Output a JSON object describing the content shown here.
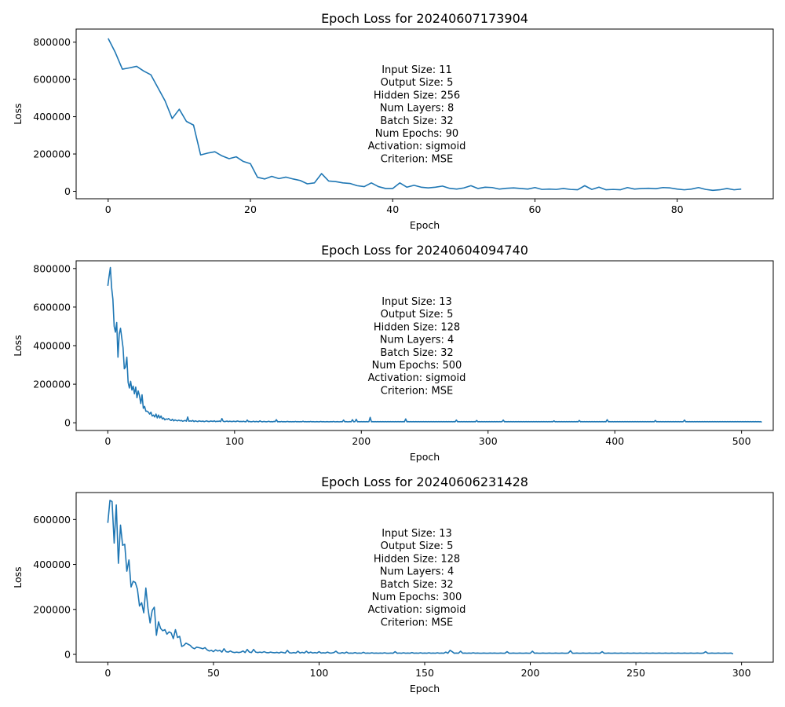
{
  "chart_data": [
    {
      "type": "line",
      "title": "Epoch Loss for 20240607173904",
      "xlabel": "Epoch",
      "ylabel": "Loss",
      "xlim": [
        -4.5,
        93.5
      ],
      "ylim": [
        -40000,
        870000
      ],
      "xticks": [
        0,
        20,
        40,
        60,
        80
      ],
      "yticks": [
        0,
        200000,
        400000,
        600000,
        800000
      ],
      "grid": false,
      "annotation": [
        "Input Size: 11",
        "Output Size: 5",
        "Hidden Size: 256",
        "Num Layers: 8",
        "Batch Size: 32",
        "Num Epochs: 90",
        "Activation: sigmoid",
        "Criterion: MSE"
      ],
      "series": [
        {
          "color": "#1f77b4",
          "x_start": 0,
          "values": [
            820000,
            745000,
            655000,
            662000,
            670000,
            645000,
            625000,
            555000,
            485000,
            390000,
            440000,
            375000,
            355000,
            195000,
            205000,
            212000,
            190000,
            175000,
            185000,
            160000,
            148000,
            75000,
            66000,
            80000,
            68000,
            76000,
            66000,
            58000,
            40000,
            45000,
            95000,
            55000,
            52000,
            45000,
            42000,
            30000,
            25000,
            45000,
            25000,
            15000,
            15000,
            45000,
            22000,
            32000,
            22000,
            18000,
            22000,
            28000,
            16000,
            12000,
            18000,
            30000,
            15000,
            22000,
            20000,
            12000,
            16000,
            18000,
            15000,
            12000,
            20000,
            10000,
            12000,
            10000,
            15000,
            10000,
            8000,
            30000,
            10000,
            22000,
            8000,
            10000,
            8000,
            20000,
            12000,
            15000,
            16000,
            14000,
            20000,
            18000,
            12000,
            8000,
            12000,
            20000,
            10000,
            5000,
            8000,
            15000,
            8000,
            12000
          ]
        }
      ]
    },
    {
      "type": "line",
      "title": "Epoch Loss for 20240604094740",
      "xlabel": "Epoch",
      "ylabel": "Loss",
      "xlim": [
        -25,
        525
      ],
      "ylim": [
        -40000,
        840000
      ],
      "xticks": [
        0,
        100,
        200,
        300,
        400,
        500
      ],
      "yticks": [
        0,
        200000,
        400000,
        600000,
        800000
      ],
      "grid": false,
      "annotation": [
        "Input Size: 13",
        "Output Size: 5",
        "Hidden Size: 128",
        "Num Layers: 4",
        "Batch Size: 32",
        "Num Epochs: 500",
        "Activation: sigmoid",
        "Criterion: MSE"
      ],
      "series": [
        {
          "color": "#1f77b4",
          "x_start": 0,
          "values": [
            710000,
            760000,
            805000,
            700000,
            640000,
            500000,
            470000,
            520000,
            340000,
            460000,
            490000,
            440000,
            390000,
            280000,
            290000,
            340000,
            210000,
            180000,
            215000,
            170000,
            190000,
            150000,
            185000,
            130000,
            165000,
            140000,
            100000,
            145000,
            75000,
            85000,
            60000,
            60000,
            55000,
            45000,
            55000,
            35000,
            40000,
            30000,
            45000,
            25000,
            40000,
            25000,
            35000,
            20000,
            25000,
            15000,
            20000,
            18000,
            22000,
            15000,
            12000,
            18000,
            10000,
            15000,
            12000,
            10000,
            14000,
            10000,
            12000,
            8000,
            10000,
            12000,
            8000,
            30000,
            8000,
            10000,
            8000,
            12000,
            6000,
            10000,
            8000,
            6000,
            10000,
            8000,
            7000,
            9000,
            6000,
            8000,
            10000,
            7000,
            6000,
            9000,
            8000,
            7000,
            10000,
            6000,
            8000,
            7000,
            9000,
            6000,
            22000,
            8000,
            6000,
            7000,
            9000,
            6000,
            8000,
            7000,
            6000,
            8000,
            7000,
            6000,
            9000,
            8000,
            6000,
            7000,
            6000,
            8000,
            6000,
            5000,
            14000,
            6000,
            7000,
            5000,
            6000,
            8000,
            5000,
            7000,
            6000,
            5000,
            10000,
            6000,
            5000,
            7000,
            6000,
            5000,
            6000,
            8000,
            5000,
            6000,
            5000,
            7000,
            6000,
            16000,
            5000,
            6000,
            5000,
            7000,
            5000,
            6000,
            5000,
            6000,
            7000,
            5000,
            6000,
            5000,
            6000,
            5000,
            7000,
            5000,
            6000,
            5000,
            6000,
            5000,
            8000,
            5000,
            6000,
            5000,
            6000,
            5000,
            7000,
            5000,
            6000,
            5000,
            5000,
            6000,
            5000,
            5000,
            7000,
            5000,
            6000,
            5000,
            5000,
            6000,
            5000,
            5000,
            6000,
            5000,
            7000,
            5000,
            5000,
            6000,
            5000,
            5000,
            6000,
            5000,
            14000,
            5000,
            6000,
            5000,
            5000,
            6000,
            5000,
            16000,
            5000,
            6000,
            18000,
            5000,
            6000,
            5000,
            6000,
            5000,
            6000,
            5000,
            6000,
            5000,
            6000,
            28000,
            5000,
            6000,
            5000,
            6000,
            5000,
            6000,
            5000,
            6000,
            5000,
            6000,
            5000,
            6000,
            5000,
            6000,
            5000,
            6000,
            5000,
            6000,
            5000,
            6000,
            5000,
            6000,
            5000,
            6000,
            5000,
            6000,
            5000,
            20000,
            5000,
            6000,
            5000,
            6000,
            5000,
            6000,
            5000,
            6000,
            5000,
            6000,
            5000,
            6000,
            5000,
            6000,
            5000,
            6000,
            5000,
            6000,
            5000,
            6000,
            5000,
            6000,
            5000,
            6000,
            5000,
            6000,
            5000,
            6000,
            5000,
            6000,
            5000,
            6000,
            5000,
            6000,
            5000,
            6000,
            5000,
            6000,
            5000,
            14000,
            5000,
            6000,
            5000,
            6000,
            5000,
            6000,
            5000,
            6000,
            5000,
            6000,
            5000,
            6000,
            5000,
            6000,
            5000,
            12000,
            5000,
            6000,
            5000,
            6000,
            5000,
            6000,
            5000,
            6000,
            5000,
            6000,
            5000,
            6000,
            5000,
            6000,
            5000,
            6000,
            5000,
            6000,
            5000,
            6000,
            14000,
            5000,
            6000,
            5000,
            6000,
            5000,
            6000,
            5000,
            6000,
            5000,
            6000,
            5000,
            6000,
            5000,
            6000,
            5000,
            6000,
            5000,
            6000,
            5000,
            6000,
            5000,
            6000,
            5000,
            6000,
            5000,
            6000,
            5000,
            6000,
            5000,
            6000,
            5000,
            6000,
            5000,
            6000,
            5000,
            6000,
            5000,
            6000,
            5000,
            10000,
            5000,
            6000,
            5000,
            6000,
            5000,
            6000,
            5000,
            6000,
            5000,
            6000,
            5000,
            6000,
            5000,
            6000,
            5000,
            6000,
            5000,
            6000,
            5000,
            12000,
            5000,
            6000,
            5000,
            6000,
            5000,
            6000,
            5000,
            6000,
            5000,
            6000,
            5000,
            6000,
            5000,
            6000,
            5000,
            6000,
            5000,
            6000,
            5000,
            6000,
            5000,
            16000,
            5000,
            6000,
            5000,
            6000,
            5000,
            6000,
            5000,
            6000,
            5000,
            6000,
            5000,
            6000,
            5000,
            6000,
            5000,
            6000,
            5000,
            6000,
            5000,
            6000,
            5000,
            6000,
            5000,
            6000,
            5000,
            6000,
            5000,
            6000,
            5000,
            6000,
            5000,
            6000,
            5000,
            6000,
            5000,
            6000,
            5000,
            12000,
            5000,
            6000,
            5000,
            6000,
            5000,
            6000,
            5000,
            6000,
            5000,
            6000,
            5000,
            6000,
            5000,
            6000,
            5000,
            6000,
            5000,
            6000,
            5000,
            6000,
            5000,
            6000,
            14000,
            5000,
            6000,
            5000,
            6000,
            5000,
            6000,
            5000,
            6000,
            5000,
            6000,
            5000,
            6000,
            5000,
            6000,
            5000,
            6000,
            5000,
            6000,
            5000,
            6000,
            5000,
            6000,
            5000,
            6000,
            5000,
            6000,
            5000,
            6000,
            5000,
            6000,
            5000,
            6000,
            5000,
            6000,
            5000,
            6000,
            5000,
            6000,
            5000,
            6000,
            5000,
            6000,
            5000,
            6000,
            5000,
            6000,
            5000,
            6000,
            5000,
            6000,
            5000,
            6000,
            5000,
            6000,
            5000,
            6000,
            5000,
            6000,
            5000,
            6000,
            3000
          ]
        }
      ]
    },
    {
      "type": "line",
      "title": "Epoch Loss for 20240606231428",
      "xlabel": "Epoch",
      "ylabel": "Loss",
      "xlim": [
        -15,
        315
      ],
      "ylim": [
        -35000,
        720000
      ],
      "xticks": [
        0,
        50,
        100,
        150,
        200,
        250,
        300
      ],
      "yticks": [
        0,
        200000,
        400000,
        600000
      ],
      "grid": false,
      "annotation": [
        "Input Size: 13",
        "Output Size: 5",
        "Hidden Size: 128",
        "Num Layers: 4",
        "Batch Size: 32",
        "Num Epochs: 300",
        "Activation: sigmoid",
        "Criterion: MSE"
      ],
      "series": [
        {
          "color": "#1f77b4",
          "x_start": 0,
          "values": [
            585000,
            685000,
            680000,
            495000,
            665000,
            405000,
            575000,
            485000,
            490000,
            370000,
            420000,
            300000,
            325000,
            320000,
            290000,
            215000,
            230000,
            185000,
            295000,
            205000,
            140000,
            195000,
            210000,
            85000,
            145000,
            115000,
            105000,
            110000,
            90000,
            100000,
            95000,
            70000,
            110000,
            75000,
            80000,
            35000,
            40000,
            50000,
            45000,
            40000,
            30000,
            25000,
            32000,
            30000,
            28000,
            25000,
            30000,
            20000,
            15000,
            18000,
            12000,
            20000,
            15000,
            18000,
            10000,
            25000,
            12000,
            10000,
            15000,
            10000,
            8000,
            10000,
            8000,
            10000,
            15000,
            8000,
            22000,
            10000,
            8000,
            22000,
            10000,
            8000,
            10000,
            8000,
            12000,
            8000,
            7000,
            10000,
            8000,
            7000,
            9000,
            6000,
            10000,
            8000,
            6000,
            18000,
            7000,
            6000,
            8000,
            6000,
            14000,
            6000,
            9000,
            6000,
            14000,
            6000,
            10000,
            6000,
            8000,
            6000,
            12000,
            6000,
            7000,
            6000,
            10000,
            6000,
            6000,
            8000,
            14000,
            6000,
            5000,
            8000,
            5000,
            10000,
            5000,
            6000,
            5000,
            8000,
            5000,
            6000,
            5000,
            9000,
            5000,
            6000,
            5000,
            7000,
            5000,
            6000,
            5000,
            6000,
            5000,
            7000,
            5000,
            5000,
            6000,
            5000,
            12000,
            5000,
            6000,
            5000,
            7000,
            5000,
            6000,
            5000,
            8000,
            5000,
            6000,
            5000,
            7000,
            5000,
            6000,
            5000,
            7000,
            5000,
            6000,
            5000,
            7000,
            5000,
            6000,
            5000,
            10000,
            5000,
            18000,
            12000,
            5000,
            6000,
            5000,
            14000,
            5000,
            6000,
            5000,
            6000,
            5000,
            7000,
            5000,
            6000,
            5000,
            5000,
            6000,
            5000,
            5000,
            6000,
            5000,
            6000,
            5000,
            5000,
            6000,
            5000,
            5000,
            12000,
            5000,
            5000,
            6000,
            5000,
            5000,
            6000,
            5000,
            5000,
            6000,
            5000,
            5000,
            14000,
            5000,
            6000,
            5000,
            5000,
            6000,
            5000,
            5000,
            6000,
            5000,
            5000,
            6000,
            5000,
            5000,
            6000,
            5000,
            5000,
            6000,
            16000,
            5000,
            5000,
            6000,
            5000,
            5000,
            6000,
            5000,
            5000,
            6000,
            5000,
            5000,
            6000,
            5000,
            5000,
            12000,
            5000,
            5000,
            6000,
            5000,
            5000,
            6000,
            5000,
            5000,
            6000,
            5000,
            5000,
            6000,
            5000,
            5000,
            6000,
            5000,
            5000,
            6000,
            5000,
            5000,
            6000,
            5000,
            5000,
            6000,
            5000,
            5000,
            6000,
            5000,
            5000,
            6000,
            5000,
            5000,
            6000,
            5000,
            5000,
            6000,
            5000,
            5000,
            6000,
            5000,
            5000,
            6000,
            5000,
            5000,
            6000,
            5000,
            5000,
            6000,
            12000,
            5000,
            5000,
            6000,
            5000,
            5000,
            6000,
            5000,
            5000,
            6000,
            5000,
            5000,
            6000,
            2000
          ]
        }
      ]
    }
  ]
}
